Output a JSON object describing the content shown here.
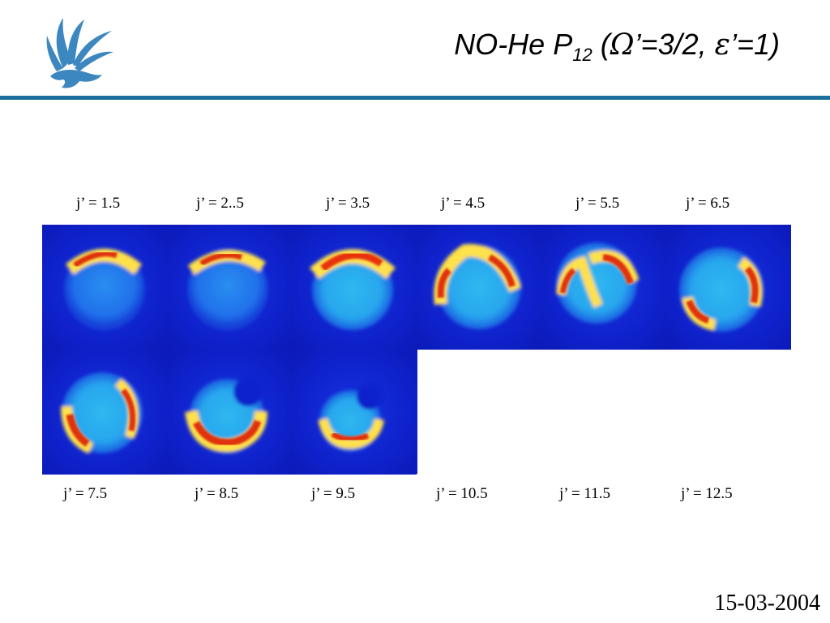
{
  "header": {
    "title_main": "NO-He P",
    "title_sub": "12",
    "title_open": " (",
    "title_omega": "Ω",
    "title_mid": "’=3/2, ",
    "title_eps": "ε",
    "title_end": "’=1)"
  },
  "labels_top": [
    "j’ = 1.5",
    "j’ = 2..5",
    "j’ = 3.5",
    "j’ = 4.5",
    "j’ = 5.5",
    "j’ = 6.5"
  ],
  "labels_bottom": [
    "j’ = 7.5",
    "j’ = 8.5",
    "j’ = 9.5",
    "j’ = 10.5",
    "j’ = 11.5",
    "j’ = 12.5"
  ],
  "footer": {
    "date": "15-03-2004"
  },
  "colors": {
    "accent_rule": "#1a6f9c",
    "background_blue": "#0f22cc"
  }
}
